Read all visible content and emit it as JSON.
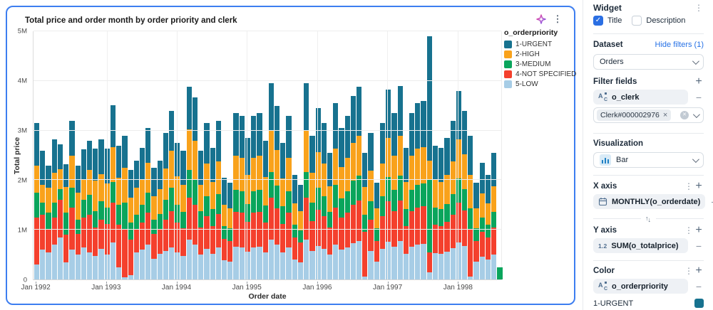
{
  "chart_card": {
    "title": "Total price and order month by order priority and clerk",
    "sparkle_icon": "ai-sparkle",
    "menu_icon": "kebab-menu"
  },
  "chart_data": {
    "type": "bar",
    "stacked": true,
    "title": "Total price and order month by order priority and clerk",
    "xlabel": "Order date",
    "ylabel": "Total price",
    "unit": "millions",
    "ylim": [
      0,
      5
    ],
    "yticks": [
      "0",
      "1M",
      "2M",
      "3M",
      "4M",
      "5M"
    ],
    "xticks": [
      {
        "i": 0,
        "label": "Jan 1992"
      },
      {
        "i": 12,
        "label": "Jan 1993"
      },
      {
        "i": 24,
        "label": "Jan 1994"
      },
      {
        "i": 36,
        "label": "Jan 1995"
      },
      {
        "i": 48,
        "label": "Jan 1996"
      },
      {
        "i": 60,
        "label": "Jan 1997"
      },
      {
        "i": 72,
        "label": "Jan 1998"
      }
    ],
    "legend_title": "o_orderpriority",
    "legend_position": "right",
    "grid": true,
    "stack_order": [
      "5-LOW",
      "4-NOT SPECIFIED",
      "3-MEDIUM",
      "2-HIGH",
      "1-URGENT"
    ],
    "months": [
      "1992-01",
      "1992-02",
      "1992-03",
      "1992-04",
      "1992-05",
      "1992-06",
      "1992-07",
      "1992-08",
      "1992-09",
      "1992-10",
      "1992-11",
      "1992-12",
      "1993-01",
      "1993-02",
      "1993-03",
      "1993-04",
      "1993-05",
      "1993-06",
      "1993-07",
      "1993-08",
      "1993-09",
      "1993-10",
      "1993-11",
      "1993-12",
      "1994-01",
      "1994-02",
      "1994-03",
      "1994-04",
      "1994-05",
      "1994-06",
      "1994-07",
      "1994-08",
      "1994-09",
      "1994-10",
      "1994-11",
      "1994-12",
      "1995-01",
      "1995-02",
      "1995-03",
      "1995-04",
      "1995-05",
      "1995-06",
      "1995-07",
      "1995-08",
      "1995-09",
      "1995-10",
      "1995-11",
      "1995-12",
      "1996-01",
      "1996-02",
      "1996-03",
      "1996-04",
      "1996-05",
      "1996-06",
      "1996-07",
      "1996-08",
      "1996-09",
      "1996-10",
      "1996-11",
      "1996-12",
      "1997-01",
      "1997-02",
      "1997-03",
      "1997-04",
      "1997-05",
      "1997-06",
      "1997-07",
      "1997-08",
      "1997-09",
      "1997-10",
      "1997-11",
      "1997-12",
      "1998-01",
      "1998-02",
      "1998-03",
      "1998-04",
      "1998-05",
      "1998-06",
      "1998-07",
      "1998-08"
    ],
    "series": [
      {
        "name": "1-URGENT",
        "color": "#17728F",
        "values": [
          0.85,
          0.7,
          0.45,
          0.67,
          0.5,
          0.45,
          0.7,
          0.55,
          0.6,
          0.6,
          0.65,
          0.7,
          0.7,
          0.85,
          0.65,
          0.65,
          0.55,
          0.55,
          0.65,
          0.7,
          0.57,
          0.58,
          0.72,
          0.8,
          0.67,
          0.7,
          0.85,
          0.87,
          0.7,
          0.82,
          0.68,
          0.82,
          0.55,
          0.52,
          0.85,
          0.85,
          0.74,
          0.85,
          0.85,
          0.73,
          0.95,
          0.89,
          0.71,
          0.85,
          0.57,
          0.52,
          0.95,
          0.75,
          0.89,
          0.82,
          0.67,
          0.91,
          0.79,
          0.85,
          0.95,
          0.99,
          0.69,
          0.76,
          0.52,
          0.82,
          0.98,
          0.86,
          1.0,
          0.68,
          0.86,
          0.91,
          0.93,
          2.5,
          0.69,
          0.68,
          0.74,
          0.82,
          0.98,
          0.88,
          0.79,
          0.52,
          0.62,
          0.57,
          0.67,
          0
        ]
      },
      {
        "name": "2-HIGH",
        "color": "#F9A21B",
        "values": [
          0.55,
          0.35,
          0.5,
          0.6,
          0.4,
          0.52,
          0.64,
          0.55,
          0.42,
          0.5,
          0.61,
          0.55,
          0.48,
          0.7,
          0.55,
          0.7,
          0.5,
          0.55,
          0.5,
          0.6,
          0.48,
          0.5,
          0.63,
          0.75,
          0.58,
          0.54,
          0.83,
          0.8,
          0.53,
          0.65,
          0.55,
          0.66,
          0.42,
          0.4,
          0.7,
          0.68,
          0.59,
          0.68,
          0.7,
          0.58,
          0.83,
          0.72,
          0.57,
          0.68,
          0.43,
          0.39,
          0.83,
          0.6,
          0.71,
          0.65,
          0.52,
          0.73,
          0.63,
          0.68,
          0.76,
          0.8,
          0.55,
          0.61,
          0.4,
          0.65,
          0.79,
          0.69,
          0.81,
          0.55,
          0.69,
          0.73,
          0.74,
          0.4,
          0.56,
          0.55,
          0.59,
          0.66,
          0.78,
          0.7,
          0.68,
          0.4,
          0.48,
          0.43,
          0.52,
          0
        ]
      },
      {
        "name": "3-MEDIUM",
        "color": "#0AA55C",
        "values": [
          0.5,
          0.25,
          0.35,
          0.3,
          0.22,
          0.45,
          0.4,
          0.28,
          0.35,
          0.4,
          0.34,
          0.37,
          0.33,
          0.41,
          0.4,
          0.55,
          0.35,
          0.3,
          0.35,
          0.4,
          0.28,
          0.32,
          0.4,
          0.48,
          0.35,
          0.33,
          0.55,
          0.5,
          0.32,
          0.4,
          0.34,
          0.4,
          0.26,
          0.25,
          0.44,
          0.43,
          0.36,
          0.42,
          0.44,
          0.35,
          0.52,
          0.45,
          0.35,
          0.42,
          0.26,
          0.24,
          0.52,
          0.37,
          0.44,
          0.4,
          0.32,
          0.46,
          0.39,
          0.42,
          0.48,
          0.5,
          0.35,
          0.38,
          0.25,
          0.4,
          0.49,
          0.43,
          0.5,
          0.34,
          0.43,
          0.46,
          0.46,
          1.45,
          0.35,
          0.34,
          0.36,
          0.41,
          0.49,
          0.43,
          0.42,
          0.25,
          0.29,
          0.26,
          0.32,
          0.25
        ]
      },
      {
        "name": "4-NOT SPECIFIED",
        "color": "#F4402D",
        "values": [
          0.95,
          0.7,
          0.45,
          0.55,
          0.75,
          0.55,
          0.85,
          0.42,
          0.6,
          0.75,
          0.56,
          0.58,
          0.62,
          0.8,
          0.85,
          0.95,
          0.72,
          0.45,
          0.55,
          0.65,
          0.5,
          0.48,
          0.62,
          0.72,
          0.6,
          0.55,
          0.85,
          0.8,
          0.55,
          0.66,
          0.56,
          0.68,
          0.44,
          0.42,
          0.7,
          0.7,
          0.6,
          0.7,
          0.7,
          0.59,
          0.85,
          0.74,
          0.58,
          0.7,
          0.44,
          0.4,
          0.85,
          0.61,
          0.73,
          0.66,
          0.54,
          0.75,
          0.64,
          0.7,
          0.78,
          0.82,
          0.9,
          0.62,
          0.42,
          0.66,
          0.81,
          0.71,
          0.82,
          0.56,
          0.71,
          0.75,
          0.76,
          0.4,
          0.57,
          0.56,
          0.6,
          0.68,
          0.8,
          0.72,
          0.95,
          0.42,
          0.5,
          0.44,
          0.54,
          0
        ]
      },
      {
        "name": "5-LOW",
        "color": "#A7CDE6",
        "values": [
          0.3,
          0.6,
          0.55,
          0.7,
          0.85,
          0.35,
          0.6,
          0.5,
          0.65,
          0.55,
          0.48,
          0.62,
          0.5,
          0.75,
          0.25,
          0.05,
          0.08,
          0.55,
          0.6,
          0.7,
          0.42,
          0.52,
          0.58,
          0.65,
          0.55,
          0.48,
          0.8,
          0.7,
          0.5,
          0.62,
          0.52,
          0.64,
          0.38,
          0.36,
          0.66,
          0.64,
          0.56,
          0.65,
          0.66,
          0.55,
          0.8,
          0.7,
          0.54,
          0.65,
          0.4,
          0.35,
          0.8,
          0.57,
          0.68,
          0.62,
          0.5,
          0.7,
          0.6,
          0.65,
          0.73,
          0.77,
          0.06,
          0.58,
          0.36,
          0.62,
          0.76,
          0.66,
          0.77,
          0.52,
          0.66,
          0.7,
          0.71,
          0.15,
          0.53,
          0.52,
          0.56,
          0.63,
          0.75,
          0.67,
          0.06,
          0.36,
          0.46,
          0.4,
          0.5,
          0
        ]
      }
    ]
  },
  "panel": {
    "widget": {
      "title": "Widget",
      "menu_icon": "kebab-menu"
    },
    "checkboxes": {
      "title_label": "Title",
      "title_checked": true,
      "description_label": "Description",
      "description_checked": false
    },
    "dataset": {
      "label": "Dataset",
      "link": "Hide filters (1)",
      "selected": "Orders"
    },
    "filter_fields": {
      "label": "Filter fields",
      "field": "o_clerk",
      "tag": "Clerk#000002976",
      "tag_remove_icon": "x",
      "clear_icon": "circle-x"
    },
    "visualization": {
      "label": "Visualization",
      "selected": "Bar"
    },
    "x_axis": {
      "label": "X axis",
      "field": "MONTHLY(o_orderdate)",
      "field_icon": "calendar"
    },
    "y_axis": {
      "label": "Y axis",
      "field": "SUM(o_totalprice)",
      "field_icon_text": "1.2"
    },
    "color": {
      "label": "Color",
      "field": "o_orderpriority",
      "first_value": "1-URGENT",
      "first_value_color": "#17728F"
    },
    "accent": "#2B6FE3"
  }
}
